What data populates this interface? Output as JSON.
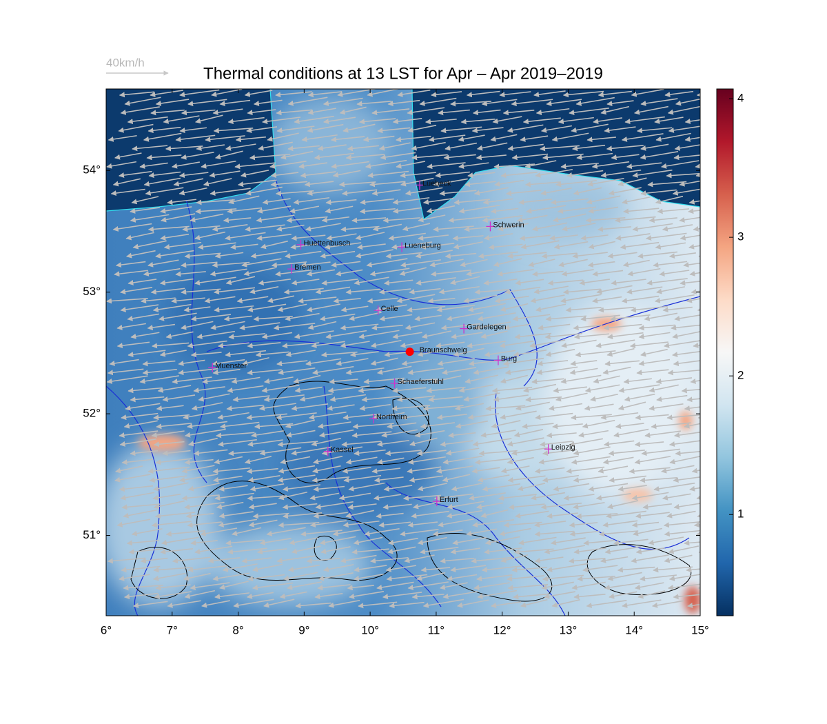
{
  "title": "Thermal conditions at 13 LST for Apr – Apr  2019–2019",
  "wind_scale_label": "40km/h",
  "map": {
    "xlim": [
      6,
      15
    ],
    "ylim": [
      50.34,
      54.67
    ],
    "xticks": [
      {
        "value": 6,
        "label": "6°"
      },
      {
        "value": 7,
        "label": "7°"
      },
      {
        "value": 8,
        "label": "8°"
      },
      {
        "value": 9,
        "label": "9°"
      },
      {
        "value": 10,
        "label": "10°"
      },
      {
        "value": 11,
        "label": "11°"
      },
      {
        "value": 12,
        "label": "12°"
      },
      {
        "value": 13,
        "label": "13°"
      },
      {
        "value": 14,
        "label": "14°"
      },
      {
        "value": 15,
        "label": "15°"
      }
    ],
    "yticks": [
      {
        "value": 51,
        "label": "51°"
      },
      {
        "value": 52,
        "label": "52°"
      },
      {
        "value": 53,
        "label": "53°"
      },
      {
        "value": 54,
        "label": "54°"
      }
    ],
    "city_color": "#cc33cc",
    "cities": [
      {
        "name": "Luebeck",
        "lon": 10.75,
        "lat": 53.88
      },
      {
        "name": "Schwerin",
        "lon": 11.82,
        "lat": 53.54
      },
      {
        "name": "Huettenbusch",
        "lon": 8.95,
        "lat": 53.39
      },
      {
        "name": "Lueneburg",
        "lon": 10.48,
        "lat": 53.37
      },
      {
        "name": "Bremen",
        "lon": 8.81,
        "lat": 53.19
      },
      {
        "name": "Celle",
        "lon": 10.12,
        "lat": 52.85
      },
      {
        "name": "Gardelegen",
        "lon": 11.42,
        "lat": 52.7
      },
      {
        "name": "Burg",
        "lon": 11.94,
        "lat": 52.44
      },
      {
        "name": "Muenster",
        "lon": 7.61,
        "lat": 52.38
      },
      {
        "name": "Schaeferstuhl",
        "lon": 10.37,
        "lat": 52.25
      },
      {
        "name": "Northeim",
        "lon": 10.05,
        "lat": 51.96
      },
      {
        "name": "Kassel",
        "lon": 9.36,
        "lat": 51.69
      },
      {
        "name": "Leipzig",
        "lon": 12.7,
        "lat": 51.71
      },
      {
        "name": "Erfurt",
        "lon": 11.01,
        "lat": 51.28
      }
    ],
    "site": {
      "name": "Braunschweig",
      "lon": 10.6,
      "lat": 52.51,
      "color": "#ff0000"
    }
  },
  "colorbar": {
    "lim": [
      0.27,
      4.07
    ],
    "ticks": [
      1,
      2,
      3,
      4
    ],
    "colors": [
      "#053061",
      "#2166ac",
      "#4393c3",
      "#92c5de",
      "#d1e5f0",
      "#f7f7f7",
      "#fddbc7",
      "#f4a582",
      "#d6604d",
      "#b2182b",
      "#67001f"
    ]
  }
}
